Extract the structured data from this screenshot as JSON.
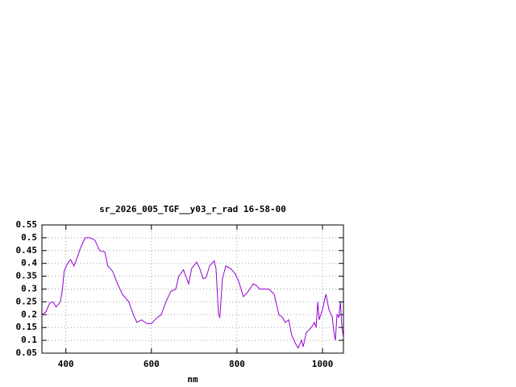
{
  "chart_data": {
    "type": "line",
    "title": "sr_2026_005_TGF__y03_r_rad 16-58-00",
    "x_label": "nm",
    "x": [
      344,
      353,
      362,
      370,
      377,
      387,
      392,
      396,
      404,
      411,
      419,
      426,
      434,
      445,
      457,
      468,
      479,
      491,
      498,
      509,
      521,
      532,
      547,
      558,
      566,
      577,
      589,
      600,
      611,
      623,
      634,
      645,
      657,
      664,
      675,
      687,
      694,
      706,
      713,
      721,
      728,
      736,
      747,
      751,
      757,
      760,
      766,
      774,
      785,
      796,
      804,
      815,
      826,
      838,
      845,
      853,
      864,
      875,
      887,
      898,
      906,
      913,
      921,
      928,
      936,
      943,
      951,
      955,
      962,
      974,
      981,
      985,
      989,
      992,
      1000,
      1008,
      1015,
      1023,
      1026,
      1030,
      1034,
      1038,
      1042,
      1045,
      1049
    ],
    "series": [
      {
        "color": "#9400d3",
        "values": [
          0.2,
          0.21,
          0.245,
          0.25,
          0.23,
          0.25,
          0.3,
          0.37,
          0.4,
          0.415,
          0.39,
          0.42,
          0.46,
          0.5,
          0.5,
          0.49,
          0.45,
          0.445,
          0.39,
          0.37,
          0.32,
          0.28,
          0.25,
          0.2,
          0.17,
          0.18,
          0.165,
          0.165,
          0.185,
          0.2,
          0.25,
          0.29,
          0.3,
          0.35,
          0.375,
          0.32,
          0.38,
          0.405,
          0.38,
          0.34,
          0.345,
          0.39,
          0.41,
          0.38,
          0.2,
          0.19,
          0.34,
          0.39,
          0.38,
          0.36,
          0.33,
          0.27,
          0.29,
          0.32,
          0.315,
          0.3,
          0.3,
          0.3,
          0.28,
          0.2,
          0.19,
          0.17,
          0.18,
          0.12,
          0.09,
          0.07,
          0.1,
          0.075,
          0.13,
          0.15,
          0.17,
          0.15,
          0.25,
          0.18,
          0.22,
          0.28,
          0.22,
          0.19,
          0.14,
          0.1,
          0.2,
          0.19,
          0.25,
          0.16,
          0.11
        ]
      }
    ],
    "xlim": [
      344,
      1049
    ],
    "xticks": [
      400,
      600,
      800,
      1000
    ],
    "ylim": [
      0.05,
      0.55
    ],
    "yticks": [
      0.05,
      0.1,
      0.15,
      0.2,
      0.25,
      0.3,
      0.35,
      0.4,
      0.45,
      0.5,
      0.55
    ],
    "grid": true
  }
}
